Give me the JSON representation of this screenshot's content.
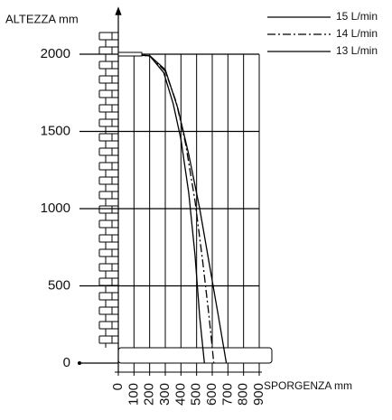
{
  "chart_data": {
    "type": "line",
    "ylabel": "ALTEZZA mm",
    "xlabel": "SPORGENZA mm",
    "xlim": [
      0,
      900
    ],
    "ylim": [
      0,
      2000
    ],
    "xticks": [
      0,
      100,
      200,
      300,
      400,
      500,
      600,
      700,
      800,
      900
    ],
    "yticks": [
      0,
      500,
      1000,
      1500,
      2000
    ],
    "grid": true,
    "legend": "upper right",
    "series": [
      {
        "name": "15 L/min",
        "color": "#000000",
        "dash": "solid",
        "x": [
          0,
          200,
          300,
          380,
          450,
          520,
          580,
          640,
          690
        ],
        "values": [
          2000,
          1990,
          1900,
          1650,
          1350,
          1000,
          650,
          300,
          0
        ]
      },
      {
        "name": "14 L/min",
        "color": "#000000",
        "dash": "dashdot",
        "x": [
          0,
          200,
          300,
          370,
          430,
          490,
          540,
          580,
          610
        ],
        "values": [
          2000,
          1990,
          1890,
          1690,
          1420,
          1050,
          650,
          300,
          0
        ]
      },
      {
        "name": "13 L/min",
        "color": "#000000",
        "dash": "solid",
        "x": [
          0,
          200,
          290,
          350,
          400,
          450,
          490,
          520,
          550
        ],
        "values": [
          2000,
          1990,
          1880,
          1680,
          1450,
          1100,
          700,
          300,
          0
        ]
      }
    ]
  }
}
